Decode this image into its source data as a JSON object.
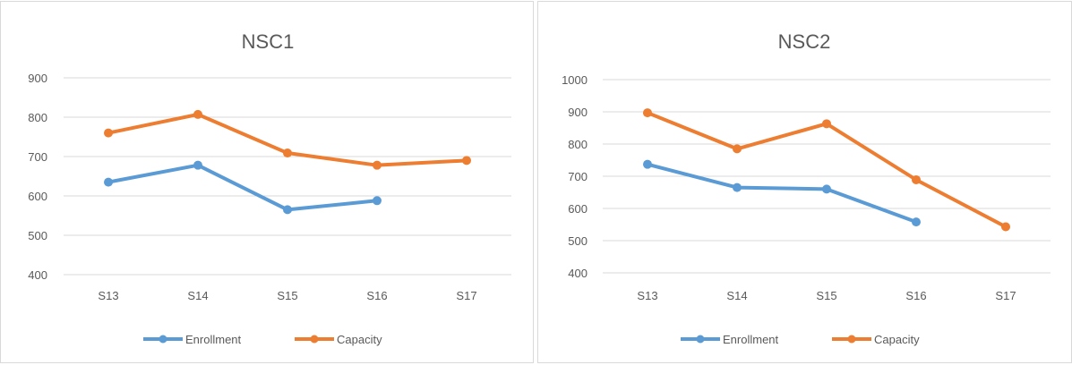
{
  "colors": {
    "enrollment": "#5b9bd5",
    "capacity": "#ed7d31",
    "grid": "#d9d9d9",
    "text": "#595959"
  },
  "chart_data": [
    {
      "type": "line",
      "title": "NSC1",
      "categories": [
        "S13",
        "S14",
        "S15",
        "S16",
        "S17"
      ],
      "series": [
        {
          "name": "Enrollment",
          "values": [
            635,
            678,
            565,
            588,
            null
          ]
        },
        {
          "name": "Capacity",
          "values": [
            760,
            807,
            709,
            678,
            690
          ]
        }
      ],
      "ylim": [
        400,
        900
      ],
      "yticks": [
        "400",
        "500",
        "600",
        "700",
        "800",
        "900"
      ],
      "grid": true,
      "legend": "bottom"
    },
    {
      "type": "line",
      "title": "NSC2",
      "categories": [
        "S13",
        "S14",
        "S15",
        "S16",
        "S17"
      ],
      "series": [
        {
          "name": "Enrollment",
          "values": [
            737,
            665,
            660,
            558,
            null
          ]
        },
        {
          "name": "Capacity",
          "values": [
            897,
            785,
            863,
            689,
            543
          ]
        }
      ],
      "ylim": [
        400,
        1000
      ],
      "yticks": [
        "400",
        "500",
        "600",
        "700",
        "800",
        "900",
        "1000"
      ],
      "grid": true,
      "legend": "bottom"
    }
  ]
}
